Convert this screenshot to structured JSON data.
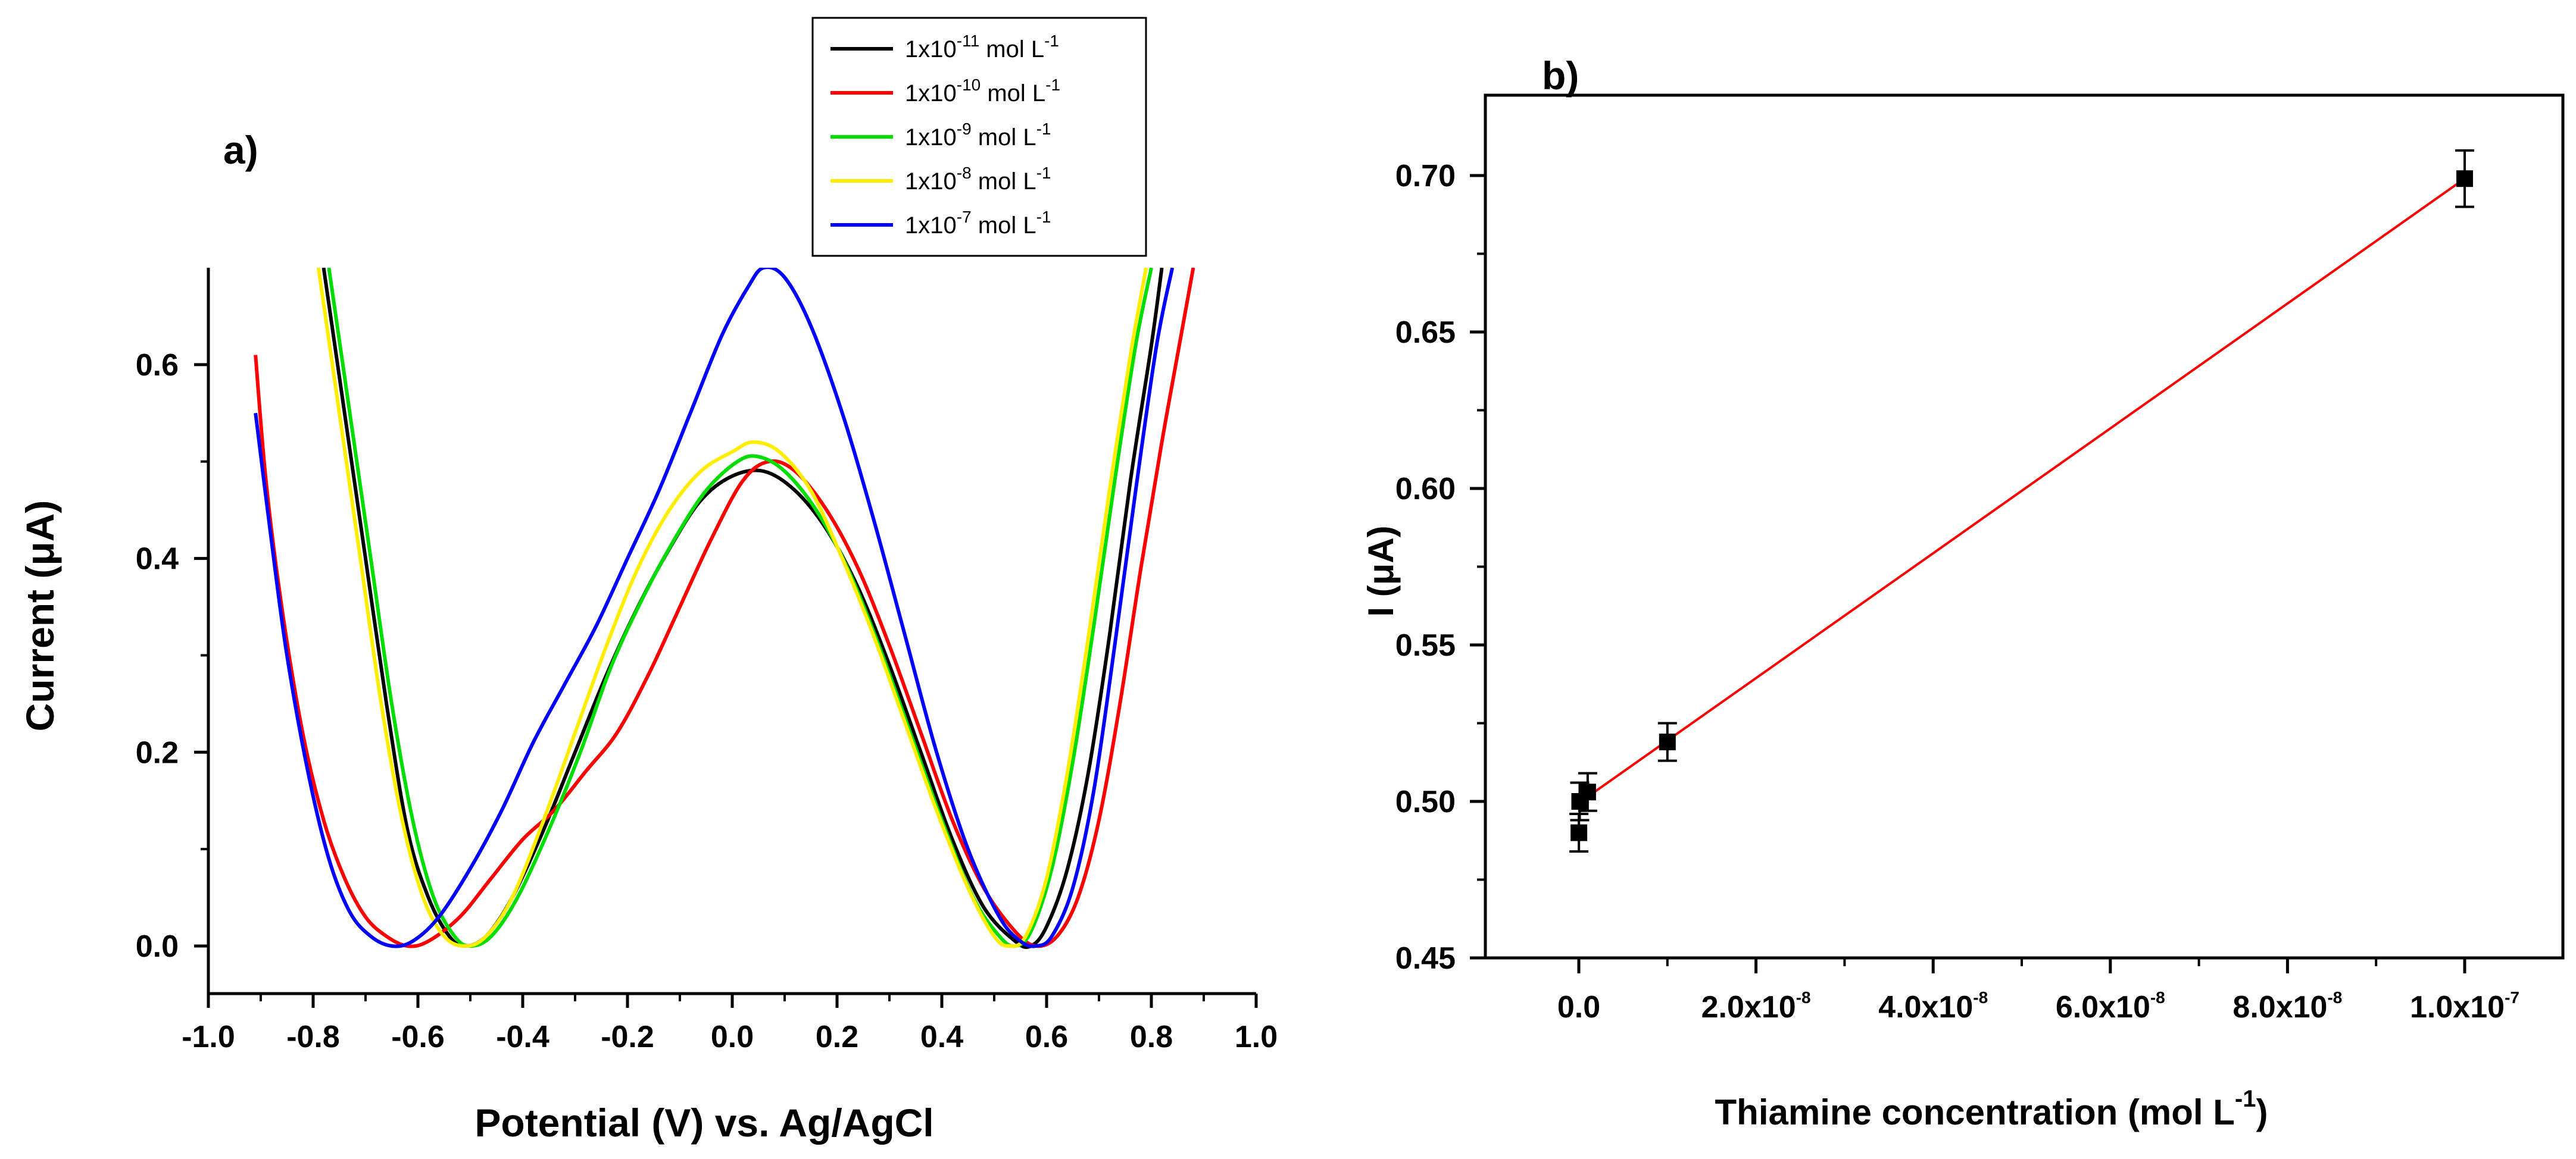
{
  "chart_data": [
    {
      "type": "line",
      "panel_label": "a)",
      "xlabel": "Potential (V) vs. Ag/AgCl",
      "ylabel": "Current (μA)",
      "xlim": [
        -1.0,
        1.0
      ],
      "ylim": [
        0.0,
        0.7
      ],
      "xticks": [
        -1.0,
        -0.8,
        -0.6,
        -0.4,
        -0.2,
        0.0,
        0.2,
        0.4,
        0.6,
        0.8,
        1.0
      ],
      "xtick_labels": [
        "-1.0",
        "-0.8",
        "-0.6",
        "-0.4",
        "-0.2",
        "0.0",
        "0.2",
        "0.4",
        "0.6",
        "0.8",
        "1.0"
      ],
      "yticks": [
        0.0,
        0.2,
        0.4,
        0.6
      ],
      "ytick_labels": [
        "0.0",
        "0.2",
        "0.4",
        "0.6"
      ],
      "grid": false,
      "legend_position": "top-right",
      "legend_suffix": "mol L",
      "series": [
        {
          "name": "1x10-11 mol L-1",
          "base": "1x10",
          "exp": "-11",
          "unit_exp": "-1",
          "color": "#000000",
          "points": [
            [
              -0.78,
              0.7
            ],
            [
              -0.74,
              0.55
            ],
            [
              -0.7,
              0.4
            ],
            [
              -0.66,
              0.25
            ],
            [
              -0.62,
              0.12
            ],
            [
              -0.58,
              0.05
            ],
            [
              -0.54,
              0.01
            ],
            [
              -0.51,
              0.0
            ],
            [
              -0.47,
              0.01
            ],
            [
              -0.42,
              0.05
            ],
            [
              -0.36,
              0.12
            ],
            [
              -0.3,
              0.2
            ],
            [
              -0.24,
              0.28
            ],
            [
              -0.18,
              0.35
            ],
            [
              -0.12,
              0.41
            ],
            [
              -0.06,
              0.46
            ],
            [
              0.0,
              0.485
            ],
            [
              0.06,
              0.49
            ],
            [
              0.12,
              0.47
            ],
            [
              0.18,
              0.43
            ],
            [
              0.24,
              0.37
            ],
            [
              0.3,
              0.29
            ],
            [
              0.36,
              0.2
            ],
            [
              0.42,
              0.11
            ],
            [
              0.48,
              0.04
            ],
            [
              0.54,
              0.005
            ],
            [
              0.57,
              0.0
            ],
            [
              0.6,
              0.02
            ],
            [
              0.64,
              0.08
            ],
            [
              0.68,
              0.18
            ],
            [
              0.72,
              0.32
            ],
            [
              0.76,
              0.48
            ],
            [
              0.8,
              0.62
            ],
            [
              0.82,
              0.7
            ]
          ]
        },
        {
          "name": "1x10-10 mol L-1",
          "base": "1x10",
          "exp": "-10",
          "unit_exp": "-1",
          "color": "#ff0000",
          "points": [
            [
              -0.91,
              0.61
            ],
            [
              -0.89,
              0.48
            ],
            [
              -0.86,
              0.35
            ],
            [
              -0.82,
              0.22
            ],
            [
              -0.78,
              0.13
            ],
            [
              -0.74,
              0.07
            ],
            [
              -0.7,
              0.03
            ],
            [
              -0.66,
              0.01
            ],
            [
              -0.62,
              0.0
            ],
            [
              -0.58,
              0.005
            ],
            [
              -0.52,
              0.03
            ],
            [
              -0.46,
              0.07
            ],
            [
              -0.4,
              0.11
            ],
            [
              -0.34,
              0.14
            ],
            [
              -0.28,
              0.18
            ],
            [
              -0.22,
              0.22
            ],
            [
              -0.16,
              0.28
            ],
            [
              -0.1,
              0.35
            ],
            [
              -0.04,
              0.42
            ],
            [
              0.02,
              0.48
            ],
            [
              0.07,
              0.5
            ],
            [
              0.12,
              0.49
            ],
            [
              0.18,
              0.45
            ],
            [
              0.24,
              0.39
            ],
            [
              0.3,
              0.31
            ],
            [
              0.36,
              0.22
            ],
            [
              0.42,
              0.13
            ],
            [
              0.48,
              0.06
            ],
            [
              0.54,
              0.015
            ],
            [
              0.58,
              0.0
            ],
            [
              0.62,
              0.01
            ],
            [
              0.66,
              0.05
            ],
            [
              0.7,
              0.13
            ],
            [
              0.74,
              0.25
            ],
            [
              0.78,
              0.39
            ],
            [
              0.82,
              0.52
            ],
            [
              0.86,
              0.64
            ],
            [
              0.88,
              0.7
            ]
          ]
        },
        {
          "name": "1x10-9 mol L-1",
          "base": "1x10",
          "exp": "-9",
          "unit_exp": "-1",
          "color": "#00dd00",
          "points": [
            [
              -0.77,
              0.7
            ],
            [
              -0.73,
              0.55
            ],
            [
              -0.69,
              0.4
            ],
            [
              -0.65,
              0.25
            ],
            [
              -0.61,
              0.13
            ],
            [
              -0.57,
              0.05
            ],
            [
              -0.53,
              0.01
            ],
            [
              -0.5,
              0.0
            ],
            [
              -0.46,
              0.01
            ],
            [
              -0.41,
              0.05
            ],
            [
              -0.35,
              0.12
            ],
            [
              -0.29,
              0.2
            ],
            [
              -0.23,
              0.29
            ],
            [
              -0.17,
              0.36
            ],
            [
              -0.11,
              0.42
            ],
            [
              -0.05,
              0.47
            ],
            [
              0.01,
              0.5
            ],
            [
              0.05,
              0.505
            ],
            [
              0.1,
              0.49
            ],
            [
              0.16,
              0.45
            ],
            [
              0.22,
              0.39
            ],
            [
              0.28,
              0.31
            ],
            [
              0.34,
              0.22
            ],
            [
              0.4,
              0.13
            ],
            [
              0.46,
              0.05
            ],
            [
              0.51,
              0.01
            ],
            [
              0.54,
              0.0
            ],
            [
              0.57,
              0.015
            ],
            [
              0.61,
              0.08
            ],
            [
              0.65,
              0.19
            ],
            [
              0.69,
              0.33
            ],
            [
              0.73,
              0.48
            ],
            [
              0.77,
              0.62
            ],
            [
              0.8,
              0.7
            ]
          ]
        },
        {
          "name": "1x10-8 mol L-1",
          "base": "1x10",
          "exp": "-8",
          "unit_exp": "-1",
          "color": "#ffee00",
          "points": [
            [
              -0.79,
              0.7
            ],
            [
              -0.75,
              0.55
            ],
            [
              -0.71,
              0.4
            ],
            [
              -0.67,
              0.25
            ],
            [
              -0.63,
              0.13
            ],
            [
              -0.59,
              0.05
            ],
            [
              -0.55,
              0.01
            ],
            [
              -0.51,
              0.0
            ],
            [
              -0.47,
              0.01
            ],
            [
              -0.42,
              0.05
            ],
            [
              -0.36,
              0.13
            ],
            [
              -0.3,
              0.22
            ],
            [
              -0.24,
              0.31
            ],
            [
              -0.18,
              0.39
            ],
            [
              -0.12,
              0.45
            ],
            [
              -0.06,
              0.49
            ],
            [
              0.0,
              0.51
            ],
            [
              0.04,
              0.52
            ],
            [
              0.09,
              0.51
            ],
            [
              0.15,
              0.47
            ],
            [
              0.21,
              0.4
            ],
            [
              0.27,
              0.32
            ],
            [
              0.33,
              0.23
            ],
            [
              0.39,
              0.14
            ],
            [
              0.45,
              0.06
            ],
            [
              0.5,
              0.01
            ],
            [
              0.53,
              0.0
            ],
            [
              0.56,
              0.01
            ],
            [
              0.6,
              0.07
            ],
            [
              0.64,
              0.18
            ],
            [
              0.68,
              0.32
            ],
            [
              0.72,
              0.47
            ],
            [
              0.76,
              0.61
            ],
            [
              0.79,
              0.7
            ]
          ]
        },
        {
          "name": "1x10-7 mol L-1",
          "base": "1x10",
          "exp": "-7",
          "unit_exp": "-1",
          "color": "#0000ff",
          "points": [
            [
              -0.91,
              0.55
            ],
            [
              -0.88,
              0.42
            ],
            [
              -0.85,
              0.3
            ],
            [
              -0.81,
              0.18
            ],
            [
              -0.77,
              0.09
            ],
            [
              -0.73,
              0.035
            ],
            [
              -0.69,
              0.01
            ],
            [
              -0.65,
              0.0
            ],
            [
              -0.61,
              0.005
            ],
            [
              -0.56,
              0.03
            ],
            [
              -0.5,
              0.08
            ],
            [
              -0.44,
              0.14
            ],
            [
              -0.38,
              0.21
            ],
            [
              -0.32,
              0.27
            ],
            [
              -0.26,
              0.33
            ],
            [
              -0.2,
              0.4
            ],
            [
              -0.14,
              0.47
            ],
            [
              -0.08,
              0.55
            ],
            [
              -0.02,
              0.63
            ],
            [
              0.03,
              0.68
            ],
            [
              0.06,
              0.7
            ],
            [
              0.1,
              0.69
            ],
            [
              0.15,
              0.64
            ],
            [
              0.21,
              0.55
            ],
            [
              0.27,
              0.44
            ],
            [
              0.33,
              0.32
            ],
            [
              0.39,
              0.2
            ],
            [
              0.45,
              0.1
            ],
            [
              0.51,
              0.03
            ],
            [
              0.55,
              0.005
            ],
            [
              0.58,
              0.0
            ],
            [
              0.61,
              0.01
            ],
            [
              0.65,
              0.06
            ],
            [
              0.69,
              0.16
            ],
            [
              0.73,
              0.31
            ],
            [
              0.77,
              0.47
            ],
            [
              0.81,
              0.62
            ],
            [
              0.84,
              0.7
            ]
          ]
        }
      ]
    },
    {
      "type": "scatter",
      "panel_label": "b)",
      "xlabel": "Thiamine concentration (mol L",
      "xlabel_exp": "-1",
      "xlabel_close": ")",
      "ylabel": "I (μA)",
      "xlim": [
        -1e-08,
        1.05e-07
      ],
      "ylim": [
        0.45,
        0.725
      ],
      "xticks": [
        0,
        2e-08,
        4e-08,
        6e-08,
        8e-08,
        1e-07
      ],
      "xtick_labels": [
        {
          "base": "0.0",
          "exp": ""
        },
        {
          "base": "2.0x10",
          "exp": "-8"
        },
        {
          "base": "4.0x10",
          "exp": "-8"
        },
        {
          "base": "6.0x10",
          "exp": "-8"
        },
        {
          "base": "8.0x10",
          "exp": "-8"
        },
        {
          "base": "1.0x10",
          "exp": "-7"
        }
      ],
      "yticks": [
        0.45,
        0.5,
        0.55,
        0.6,
        0.65,
        0.7
      ],
      "ytick_labels": [
        "0.45",
        "0.50",
        "0.55",
        "0.60",
        "0.65",
        "0.70"
      ],
      "grid": false,
      "points": [
        {
          "x": 1e-11,
          "y": 0.49,
          "err": 0.006
        },
        {
          "x": 1e-10,
          "y": 0.5,
          "err": 0.006
        },
        {
          "x": 1e-09,
          "y": 0.503,
          "err": 0.006
        },
        {
          "x": 1e-08,
          "y": 0.519,
          "err": 0.006
        },
        {
          "x": 1e-07,
          "y": 0.699,
          "err": 0.009
        }
      ],
      "fit_line": {
        "x": [
          0,
          1e-07
        ],
        "y": [
          0.4995,
          0.699
        ],
        "color": "#ff0000"
      }
    }
  ]
}
